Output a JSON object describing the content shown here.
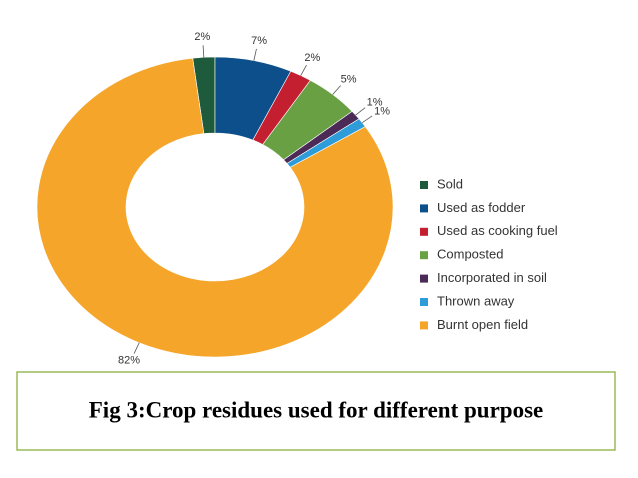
{
  "chart_data": {
    "type": "pie",
    "title": "Fig 3:Crop residues used for different purpose",
    "categories": [
      "Sold",
      "Used as fodder",
      "Used as cooking fuel",
      "Composted",
      "Incorporated in soil",
      "Thrown away",
      "Burnt open field"
    ],
    "values": [
      2,
      7,
      2,
      5,
      1,
      1,
      82
    ],
    "value_labels": [
      "2%",
      "7%",
      "2%",
      "5%",
      "1%",
      "1%",
      "82%"
    ],
    "colors": [
      "#1e5a3c",
      "#0d4f8b",
      "#c41f30",
      "#69a044",
      "#4b2a57",
      "#2e9cd8",
      "#f5a52a"
    ],
    "donut": true,
    "legend": "right"
  }
}
